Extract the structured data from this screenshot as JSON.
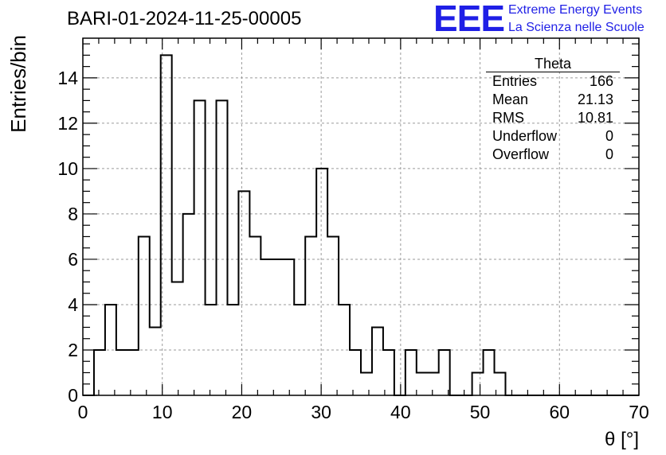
{
  "title": "BARI-01-2024-11-25-00005",
  "logo": {
    "mark": "EEE",
    "line1": "Extreme Energy Events",
    "line2": "La Scienza nelle Scuole",
    "color": "#1f1fe6"
  },
  "stats_box": {
    "title": "Theta",
    "rows": [
      {
        "label": "Entries",
        "value": "166"
      },
      {
        "label": "Mean",
        "value": "21.13"
      },
      {
        "label": "RMS",
        "value": "10.81"
      },
      {
        "label": "Underflow",
        "value": "0"
      },
      {
        "label": "Overflow",
        "value": "0"
      }
    ]
  },
  "chart_data": {
    "type": "bar",
    "style": "step-histogram",
    "xlabel": "θ [°]",
    "ylabel": "Entries/bin",
    "xlim": [
      0,
      70
    ],
    "ylim": [
      0,
      15.75
    ],
    "grid": true,
    "x_ticks": [
      "0",
      "10",
      "20",
      "30",
      "40",
      "50",
      "60",
      "70"
    ],
    "y_ticks": [
      "0",
      "2",
      "4",
      "6",
      "8",
      "10",
      "12",
      "14"
    ],
    "bin_width": 1.4,
    "bin_start": 0,
    "values": [
      0,
      2,
      4,
      2,
      2,
      7,
      3,
      15,
      5,
      8,
      13,
      4,
      13,
      4,
      9,
      7,
      6,
      6,
      6,
      4,
      7,
      10,
      7,
      4,
      2,
      1,
      3,
      2,
      0,
      2,
      1,
      1,
      2,
      0,
      0,
      1,
      2,
      1,
      0,
      0,
      0,
      0,
      0,
      0,
      0,
      0,
      0,
      0,
      0,
      0
    ]
  }
}
